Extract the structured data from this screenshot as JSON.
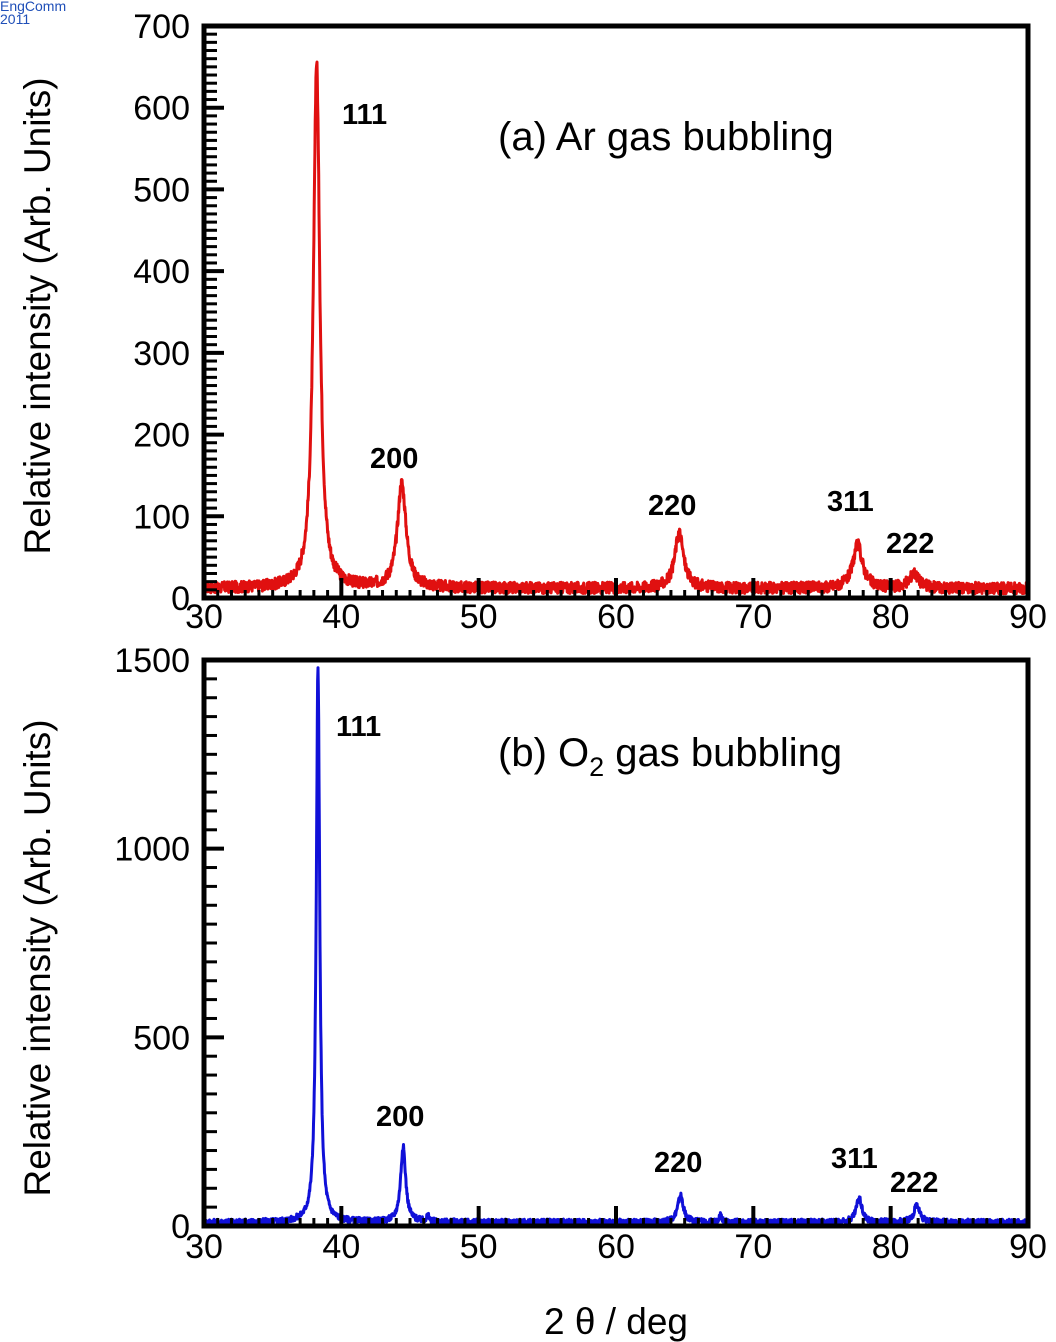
{
  "source_note": {
    "line1": "EngComm",
    "line2": "2011"
  },
  "chart_data": [
    {
      "type": "line",
      "panel_label": "(a) Ar gas bubbling",
      "ylabel": "Relative intensity (Arb. Units)",
      "xlabel": "",
      "xlim": [
        30,
        90
      ],
      "ylim": [
        0,
        700
      ],
      "xticks": [
        30,
        40,
        50,
        60,
        70,
        80,
        90
      ],
      "yticks": [
        0,
        100,
        200,
        300,
        400,
        500,
        600,
        700
      ],
      "grid": false,
      "color": "#e01010",
      "baseline": 12,
      "peaks": [
        {
          "label": "111",
          "x": 38.2,
          "y": 655,
          "width": 0.28
        },
        {
          "label": "200",
          "x": 44.4,
          "y": 140,
          "width": 0.38
        },
        {
          "label": "220",
          "x": 64.6,
          "y": 80,
          "width": 0.38
        },
        {
          "label": "311",
          "x": 77.6,
          "y": 65,
          "width": 0.42
        },
        {
          "label": "222",
          "x": 81.7,
          "y": 30,
          "width": 0.4
        }
      ]
    },
    {
      "type": "line",
      "panel_label_main": "(b) O",
      "panel_label_sub": "2",
      "panel_label_rest": " gas bubbling",
      "ylabel": "Relative intensity (Arb. Units)",
      "xlabel": "2 θ / deg",
      "xlim": [
        30,
        90
      ],
      "ylim": [
        0,
        1500
      ],
      "xticks": [
        30,
        40,
        50,
        60,
        70,
        80,
        90
      ],
      "yticks": [
        0,
        500,
        1000,
        1500
      ],
      "grid": false,
      "color": "#1010d8",
      "baseline": 10,
      "peaks": [
        {
          "label": "111",
          "x": 38.3,
          "y": 1480,
          "width": 0.15
        },
        {
          "label": "200",
          "x": 44.5,
          "y": 210,
          "width": 0.22
        },
        {
          "label": "",
          "x": 46.3,
          "y": 25,
          "width": 0.12
        },
        {
          "label": "220",
          "x": 64.7,
          "y": 80,
          "width": 0.25
        },
        {
          "label": "",
          "x": 67.6,
          "y": 30,
          "width": 0.12
        },
        {
          "label": "311",
          "x": 77.7,
          "y": 75,
          "width": 0.25
        },
        {
          "label": "222",
          "x": 81.9,
          "y": 55,
          "width": 0.25
        }
      ]
    }
  ]
}
